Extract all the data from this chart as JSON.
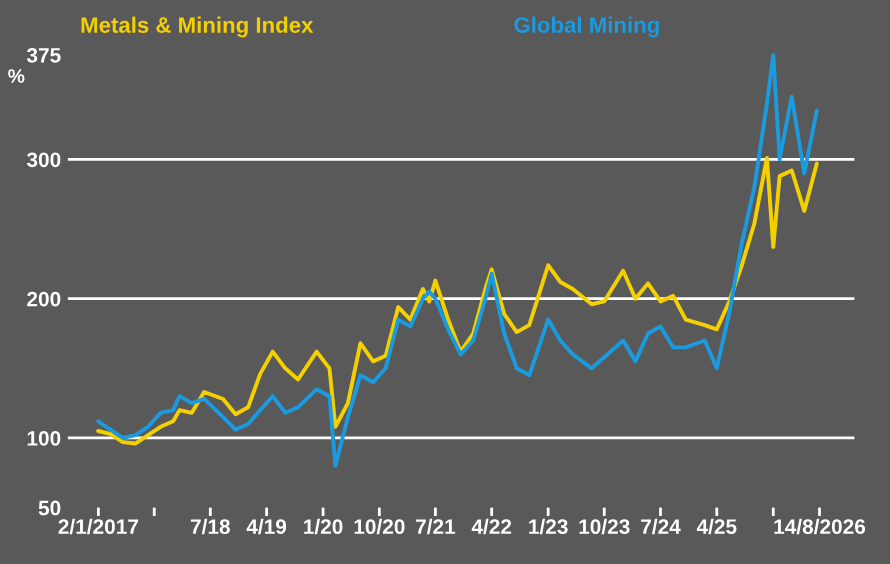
{
  "chart_data": {
    "type": "line",
    "ylabel": "%",
    "legend": "top",
    "line_style": "solid",
    "marker": "none",
    "grid": false,
    "x": [
      "2017-01",
      "2017-03",
      "2017-05",
      "2017-07",
      "2017-09",
      "2017-11",
      "2018-01",
      "2018-02",
      "2018-04",
      "2018-06",
      "2018-09",
      "2018-11",
      "2019-01",
      "2019-03",
      "2019-05",
      "2019-07",
      "2019-09",
      "2019-12",
      "2020-02",
      "2020-03",
      "2020-05",
      "2020-07",
      "2020-09",
      "2020-11",
      "2021-01",
      "2021-03",
      "2021-05",
      "2021-06",
      "2021-07",
      "2021-09",
      "2021-11",
      "2022-01",
      "2022-03",
      "2022-04",
      "2022-06",
      "2022-08",
      "2022-10",
      "2023-01",
      "2023-03",
      "2023-05",
      "2023-08",
      "2023-10",
      "2024-01",
      "2024-03",
      "2024-05",
      "2024-07",
      "2024-09",
      "2024-11",
      "2025-02",
      "2025-04",
      "2025-06",
      "2025-08",
      "2025-10",
      "2025-12",
      "2026-01",
      "2026-02",
      "2026-04",
      "2026-06",
      "2026-08"
    ],
    "series": [
      {
        "name": "Metals & Mining Index",
        "color": "#f5d000",
        "values": [
          105,
          103,
          97,
          96,
          102,
          108,
          112,
          120,
          118,
          133,
          128,
          117,
          122,
          146,
          162,
          150,
          142,
          162,
          150,
          108,
          125,
          168,
          155,
          159,
          194,
          185,
          207,
          198,
          213,
          185,
          162,
          175,
          207,
          221,
          189,
          176,
          181,
          224,
          212,
          207,
          196,
          198,
          220,
          200,
          211,
          198,
          202,
          185,
          181,
          178,
          198,
          224,
          254,
          301,
          237,
          288,
          292,
          263,
          297
        ]
      },
      {
        "name": "Global Mining",
        "color": "#1a9be0",
        "values": [
          112,
          106,
          100,
          102,
          108,
          118,
          120,
          130,
          125,
          128,
          115,
          106,
          110,
          120,
          130,
          118,
          122,
          135,
          130,
          80,
          115,
          145,
          140,
          150,
          185,
          180,
          200,
          205,
          200,
          178,
          160,
          170,
          200,
          218,
          175,
          150,
          145,
          185,
          170,
          160,
          150,
          158,
          170,
          155,
          175,
          180,
          165,
          165,
          170,
          150,
          190,
          240,
          280,
          340,
          375,
          300,
          345,
          290,
          335
        ]
      }
    ],
    "xlim": [
      "2016-08-01",
      "2027-01-31"
    ],
    "xticks": [
      {
        "value": "2017-01-02",
        "label": "2/1/2017"
      },
      {
        "value": "2017-10-01",
        "label": null
      },
      {
        "value": "2018-07-01",
        "label": "7/18"
      },
      {
        "value": "2019-04-01",
        "label": "4/19"
      },
      {
        "value": "2020-01-01",
        "label": "1/20"
      },
      {
        "value": "2020-10-01",
        "label": "10/20"
      },
      {
        "value": "2021-07-01",
        "label": "7/21"
      },
      {
        "value": "2022-04-01",
        "label": "4/22"
      },
      {
        "value": "2023-01-01",
        "label": "1/23"
      },
      {
        "value": "2023-10-01",
        "label": "10/23"
      },
      {
        "value": "2024-07-01",
        "label": "7/24"
      },
      {
        "value": "2025-04-01",
        "label": "4/25"
      },
      {
        "value": "2026-01-01",
        "label": null
      },
      {
        "value": "2026-08-14",
        "label": "14/8/2026"
      }
    ],
    "ylim": [
      50,
      378
    ],
    "yticks": [
      50,
      100,
      200,
      300,
      375
    ],
    "ref_lines": [
      {
        "axis": "y",
        "value": 100,
        "color": "#ffffff"
      },
      {
        "axis": "y",
        "value": 200,
        "color": "#ffffff"
      },
      {
        "axis": "y",
        "value": 300,
        "color": "#ffffff"
      }
    ]
  }
}
